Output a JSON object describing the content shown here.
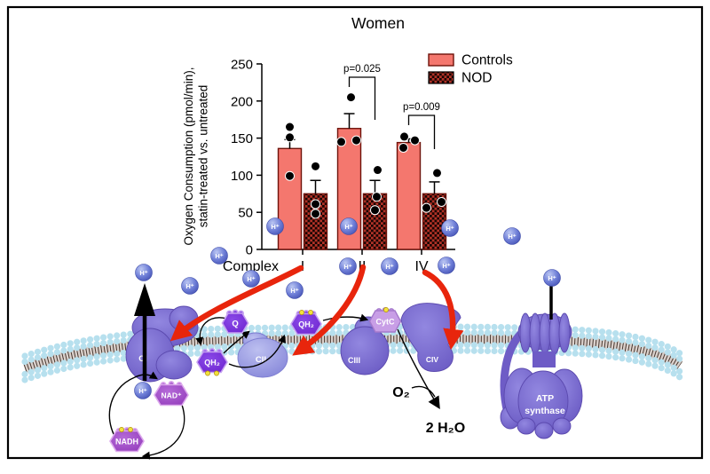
{
  "figure": {
    "title": "Women",
    "y_axis": {
      "label_line1": "Oxygen Consumption (pmol/min),",
      "label_line2": "statin-treated vs. untreated",
      "ticks": [
        0,
        50,
        100,
        150,
        200,
        250
      ]
    },
    "x_axis": {
      "prefix": "Complex",
      "categories": [
        "I",
        "II",
        "IV"
      ]
    },
    "legend": [
      {
        "label": "Controls"
      },
      {
        "label": "NOD"
      }
    ],
    "significance": [
      {
        "category": "II",
        "label": "p=0.025"
      },
      {
        "category": "IV",
        "label": "p=0.009"
      }
    ]
  },
  "chart_data": {
    "type": "bar",
    "title": "Women",
    "categories": [
      "I",
      "II",
      "IV"
    ],
    "xlabel": "Complex",
    "ylabel": "Oxygen Consumption (pmol/min), statin-treated vs. untreated",
    "ylim": [
      0,
      250
    ],
    "grid": false,
    "legend_position": "top-right",
    "series": [
      {
        "name": "Controls",
        "values": [
          136,
          163,
          144
        ],
        "sem": [
          12,
          20,
          5
        ],
        "points": [
          [
            165,
            151,
            99
          ],
          [
            205,
            145,
            147
          ],
          [
            152,
            147,
            137
          ]
        ]
      },
      {
        "name": "NOD",
        "values": [
          75,
          75,
          75
        ],
        "sem": [
          18,
          18,
          16
        ],
        "points": [
          [
            112,
            61,
            48
          ],
          [
            107,
            71,
            53
          ],
          [
            103,
            64,
            56
          ]
        ]
      }
    ],
    "annotations": [
      {
        "category": "II",
        "between": [
          "Controls",
          "NOD"
        ],
        "text": "p=0.025"
      },
      {
        "category": "IV",
        "between": [
          "Controls",
          "NOD"
        ],
        "text": "p=0.009"
      }
    ]
  },
  "diagram": {
    "hplus": "H⁺",
    "complex_1": "CI",
    "complex_2": "CII",
    "complex_3": "CIII",
    "complex_4": "CIV",
    "atp_line1": "ATP",
    "atp_line2": "synthase",
    "q": "Q",
    "qh2": "QH₂",
    "nadh": "NADH",
    "nad_plus": "NAD⁺",
    "cytc": "CytC",
    "o2": "O₂",
    "water": "2 H₂O"
  },
  "colors": {
    "controls_fill": "#F4776E",
    "bar_stroke": "#6E130B",
    "nod_checker_red": "#B13227",
    "nod_checker_dark": "#1A0503",
    "red_arrow": "#E8250C",
    "membrane_head": "#B7E0EE",
    "complex_purple": "#7161C9",
    "hplus_blue": "#5D6FD0",
    "cytc_lavender": "#C89EE6"
  }
}
